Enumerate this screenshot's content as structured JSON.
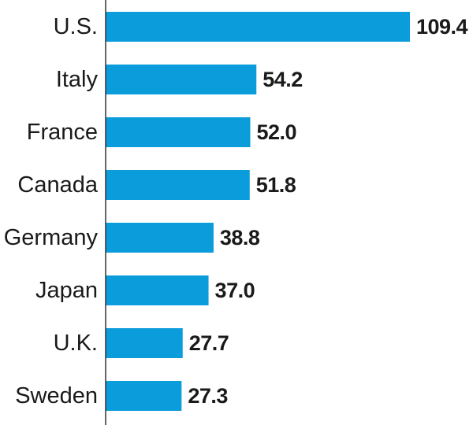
{
  "chart_data": {
    "type": "bar",
    "orientation": "horizontal",
    "categories": [
      "U.S.",
      "Italy",
      "France",
      "Canada",
      "Germany",
      "Japan",
      "U.K.",
      "Sweden"
    ],
    "values": [
      109.4,
      54.2,
      52.0,
      51.8,
      38.8,
      37.0,
      27.7,
      27.3
    ],
    "value_labels": [
      "109.4",
      "54.2",
      "52.0",
      "51.8",
      "38.8",
      "37.0",
      "27.7",
      "27.3"
    ],
    "title": "",
    "xlabel": "",
    "ylabel": "",
    "xlim": [
      0,
      109.4
    ],
    "grid": false,
    "legend": "none",
    "colors": {
      "bar": "#0b9ddb",
      "axis": "#333333",
      "text": "#1a1a1a"
    }
  }
}
